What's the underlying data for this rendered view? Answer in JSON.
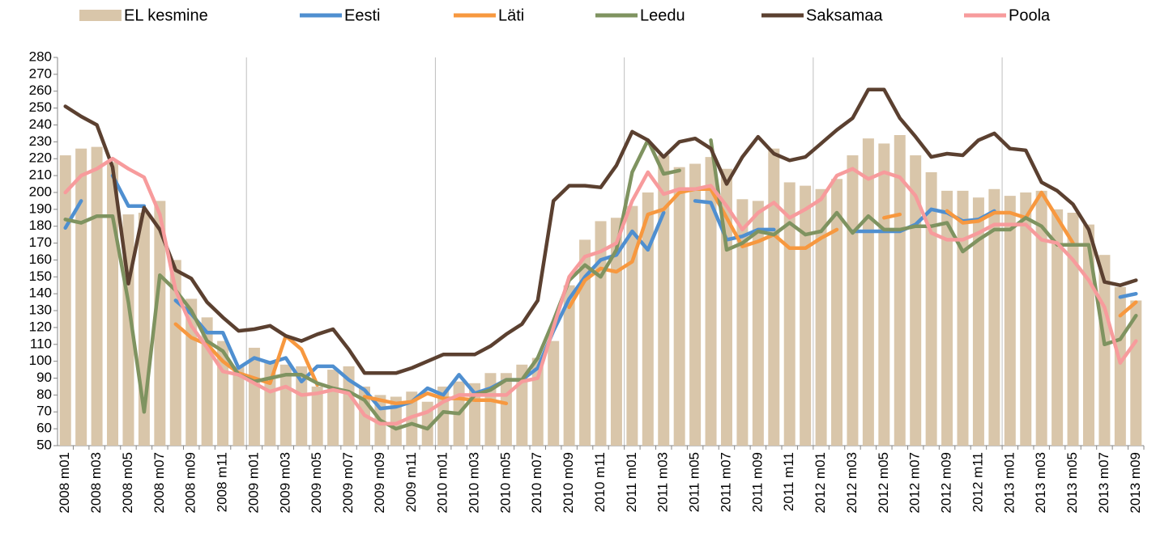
{
  "chart_data": {
    "type": "bar-line",
    "categories": [
      "2008 m01",
      null,
      "2008 m03",
      null,
      "2008 m05",
      null,
      "2008 m07",
      null,
      "2008 m09",
      null,
      "2008 m11",
      null,
      "2009 m01",
      null,
      "2009 m03",
      null,
      "2009 m05",
      null,
      "2009 m07",
      null,
      "2009 m09",
      null,
      "2009 m11",
      null,
      "2010 m01",
      null,
      "2010 m03",
      null,
      "2010 m05",
      null,
      "2010 m07",
      null,
      "2010 m09",
      null,
      "2010 m11",
      null,
      "2011 m01",
      null,
      "2011 m03",
      null,
      "2011 m05",
      null,
      "2011 m07",
      null,
      "2011 m09",
      null,
      "2011 m11",
      null,
      "2012 m01",
      null,
      "2012 m03",
      null,
      "2012 m05",
      null,
      "2012 m07",
      null,
      "2012 m09",
      null,
      "2012 m11",
      null,
      "2013 m01",
      null,
      "2013 m03",
      null,
      "2013 m05",
      null,
      "2013 m07",
      null,
      "2013 m09"
    ],
    "series": [
      {
        "name": "EL kesmine",
        "kind": "bar",
        "color": "#d9c6aa",
        "values": [
          222,
          226,
          227,
          218,
          187,
          188,
          195,
          160,
          137,
          126,
          112,
          97,
          108,
          100,
          98,
          97,
          85,
          95,
          97,
          85,
          80,
          79,
          82,
          76,
          85,
          88,
          87,
          93,
          93,
          98,
          102,
          112,
          145,
          172,
          183,
          185,
          192,
          200,
          222,
          215,
          217,
          221,
          214,
          196,
          195,
          226,
          206,
          204,
          202,
          208,
          222,
          232,
          229,
          234,
          222,
          212,
          201,
          201,
          197,
          202,
          198,
          200,
          201,
          190,
          188,
          181,
          163,
          144,
          136
        ]
      },
      {
        "name": "Eesti",
        "kind": "line",
        "color": "#4f8fd0",
        "values": [
          179,
          195,
          null,
          210,
          192,
          192,
          null,
          136,
          128,
          117,
          117,
          96,
          102,
          99,
          102,
          88,
          97,
          97,
          89,
          83,
          72,
          73,
          76,
          84,
          80,
          92,
          81,
          84,
          89,
          89,
          96,
          118,
          137,
          150,
          160,
          163,
          177,
          166,
          188,
          null,
          195,
          194,
          172,
          174,
          178,
          178,
          null,
          null,
          null,
          null,
          177,
          177,
          177,
          177,
          181,
          190,
          188,
          183,
          184,
          189,
          null,
          null,
          null,
          null,
          null,
          null,
          null,
          138,
          140
        ]
      },
      {
        "name": "Läti",
        "kind": "line",
        "color": "#f7983f",
        "values": [
          null,
          null,
          null,
          null,
          null,
          null,
          null,
          122,
          114,
          110,
          100,
          93,
          90,
          87,
          115,
          107,
          86,
          null,
          null,
          79,
          77,
          75,
          76,
          81,
          78,
          78,
          77,
          77,
          75,
          null,
          null,
          null,
          132,
          148,
          155,
          153,
          159,
          187,
          190,
          200,
          202,
          202,
          185,
          168,
          171,
          175,
          167,
          167,
          173,
          178,
          null,
          null,
          185,
          187,
          null,
          null,
          189,
          182,
          183,
          188,
          188,
          185,
          200,
          185,
          170,
          null,
          null,
          127,
          135
        ]
      },
      {
        "name": "Leedu",
        "kind": "line",
        "color": "#7f9360",
        "values": [
          184,
          182,
          186,
          186,
          135,
          70,
          151,
          142,
          130,
          112,
          106,
          92,
          88,
          90,
          92,
          92,
          87,
          84,
          82,
          77,
          65,
          60,
          63,
          60,
          70,
          69,
          80,
          83,
          89,
          89,
          102,
          124,
          148,
          157,
          150,
          166,
          212,
          231,
          211,
          213,
          null,
          231,
          166,
          170,
          177,
          175,
          182,
          175,
          177,
          188,
          176,
          186,
          178,
          178,
          180,
          180,
          182,
          165,
          172,
          178,
          178,
          185,
          180,
          169,
          169,
          169,
          110,
          113,
          127
        ]
      },
      {
        "name": "Saksamaa",
        "kind": "line",
        "color": "#5b4030",
        "values": [
          251,
          245,
          240,
          215,
          146,
          191,
          178,
          154,
          149,
          135,
          126,
          118,
          119,
          121,
          115,
          112,
          116,
          119,
          107,
          93,
          93,
          93,
          96,
          100,
          104,
          104,
          104,
          109,
          116,
          122,
          136,
          195,
          204,
          204,
          203,
          216,
          236,
          231,
          221,
          230,
          232,
          226,
          205,
          221,
          233,
          223,
          219,
          221,
          229,
          237,
          244,
          261,
          261,
          244,
          233,
          221,
          223,
          222,
          231,
          235,
          226,
          225,
          206,
          201,
          193,
          178,
          147,
          145,
          148
        ]
      },
      {
        "name": "Poola",
        "kind": "line",
        "color": "#f79b9c",
        "values": [
          200,
          210,
          214,
          220,
          214,
          209,
          187,
          142,
          121,
          108,
          94,
          92,
          87,
          82,
          85,
          80,
          81,
          83,
          81,
          68,
          63,
          63,
          67,
          70,
          76,
          80,
          80,
          80,
          80,
          88,
          90,
          120,
          150,
          162,
          165,
          170,
          195,
          212,
          199,
          202,
          202,
          204,
          192,
          178,
          188,
          194,
          185,
          190,
          196,
          210,
          214,
          208,
          212,
          209,
          198,
          176,
          172,
          172,
          176,
          181,
          181,
          181,
          172,
          170,
          160,
          148,
          132,
          99,
          112
        ]
      }
    ],
    "ylim": [
      50,
      280
    ],
    "yticks": [
      50,
      60,
      70,
      80,
      90,
      100,
      110,
      120,
      130,
      140,
      150,
      160,
      170,
      180,
      190,
      200,
      210,
      220,
      230,
      240,
      250,
      260,
      270,
      280
    ]
  }
}
